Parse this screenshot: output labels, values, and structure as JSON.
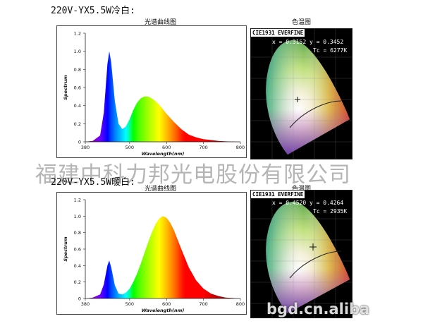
{
  "sections": [
    {
      "title": "220V-YX5.5W冷白:",
      "spectrum_title": "光谱曲线图",
      "cie_title": "色温图",
      "cie": {
        "header": "CIE1931 EVERFINE",
        "xy": "x = 0.3152 y = 0.3452",
        "tc": "Tc = 6277K"
      }
    },
    {
      "title": "220V-YX5.5W暖白:",
      "spectrum_title": "光谱曲线图",
      "cie_title": "色温图",
      "cie": {
        "header": "CIE1931 EVERFINE",
        "xy": "x = 0.4520 y = 0.4264",
        "tc": "Tc = 2935K"
      }
    }
  ],
  "watermark": "福建中科力邦光电股份有限公司",
  "brand_watermark": "bgd.cn.aliba",
  "chart_data": [
    {
      "type": "area",
      "xlabel": "Wavelength(nm)",
      "ylabel": "Spectrum",
      "xlim": [
        380,
        800
      ],
      "ylim": [
        0,
        1.2
      ],
      "xticks": [
        "380",
        "500",
        "600",
        "700",
        "800"
      ],
      "xtick_values": [
        380,
        500,
        600,
        700,
        800
      ],
      "yticks": [
        "0",
        "0.2",
        "0.4",
        "0.6",
        "0.8",
        "1.0",
        "1.2"
      ],
      "ytick_values": [
        0,
        0.2,
        0.4,
        0.6,
        0.8,
        1.0,
        1.2
      ],
      "grid": false,
      "x": [
        380,
        400,
        420,
        430,
        440,
        445,
        450,
        460,
        470,
        480,
        490,
        500,
        510,
        520,
        530,
        540,
        550,
        560,
        570,
        580,
        590,
        600,
        620,
        640,
        660,
        680,
        700,
        720,
        740,
        760,
        780,
        800
      ],
      "y": [
        0,
        0.01,
        0.07,
        0.32,
        0.86,
        1.0,
        0.88,
        0.45,
        0.2,
        0.14,
        0.17,
        0.25,
        0.35,
        0.43,
        0.48,
        0.5,
        0.5,
        0.48,
        0.45,
        0.41,
        0.36,
        0.31,
        0.22,
        0.14,
        0.08,
        0.05,
        0.03,
        0.02,
        0.01,
        0.005,
        0.002,
        0
      ]
    },
    {
      "type": "area",
      "xlabel": "Wavelength(nm)",
      "ylabel": "Spectrum",
      "xlim": [
        380,
        800
      ],
      "ylim": [
        0,
        1.2
      ],
      "xticks": [
        "380",
        "500",
        "600",
        "700",
        "800"
      ],
      "xtick_values": [
        380,
        500,
        600,
        700,
        800
      ],
      "yticks": [
        "0",
        "0.2",
        "0.4",
        "0.6",
        "0.8",
        "1.0",
        "1.2"
      ],
      "ytick_values": [
        0,
        0.2,
        0.4,
        0.6,
        0.8,
        1.0,
        1.2
      ],
      "grid": false,
      "x": [
        380,
        400,
        420,
        430,
        440,
        445,
        450,
        460,
        470,
        480,
        490,
        500,
        510,
        520,
        530,
        540,
        550,
        560,
        570,
        580,
        590,
        600,
        610,
        620,
        640,
        660,
        680,
        700,
        720,
        740,
        760,
        780,
        800
      ],
      "y": [
        0,
        0.01,
        0.05,
        0.17,
        0.4,
        0.46,
        0.38,
        0.16,
        0.06,
        0.05,
        0.07,
        0.12,
        0.2,
        0.3,
        0.42,
        0.55,
        0.68,
        0.8,
        0.9,
        0.97,
        1.0,
        0.98,
        0.92,
        0.83,
        0.6,
        0.38,
        0.22,
        0.12,
        0.06,
        0.03,
        0.01,
        0.005,
        0
      ]
    }
  ]
}
